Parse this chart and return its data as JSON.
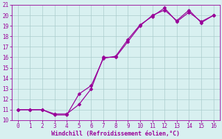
{
  "xlabel": "Windchill (Refroidissement éolien,°C)",
  "line1_x": [
    0,
    1,
    2,
    3,
    4,
    5,
    6,
    7,
    8,
    9,
    10,
    11,
    12,
    13,
    14,
    15,
    16
  ],
  "line1_y": [
    11,
    11,
    11,
    10.5,
    10.5,
    12.5,
    13.3,
    15.9,
    16.1,
    17.7,
    19.1,
    19.9,
    20.7,
    19.4,
    20.3,
    19.4,
    20.0
  ],
  "line2_x": [
    0,
    1,
    2,
    3,
    4,
    5,
    6,
    7,
    8,
    9,
    10,
    11,
    12,
    13,
    14,
    15,
    16
  ],
  "line2_y": [
    11,
    11,
    11,
    10.6,
    10.6,
    11.5,
    13.0,
    16.0,
    16.0,
    17.5,
    19.0,
    20.0,
    20.5,
    19.5,
    20.5,
    19.3,
    20.0
  ],
  "line_color": "#990099",
  "bg_color": "#d8f0f0",
  "grid_color": "#aacccc",
  "axis_label_color": "#990099",
  "tick_color": "#990099",
  "xlim": [
    -0.5,
    16.5
  ],
  "ylim": [
    10,
    21
  ],
  "xticks": [
    0,
    1,
    2,
    3,
    4,
    5,
    6,
    7,
    8,
    9,
    10,
    11,
    12,
    13,
    14,
    15,
    16
  ],
  "yticks": [
    10,
    11,
    12,
    13,
    14,
    15,
    16,
    17,
    18,
    19,
    20,
    21
  ],
  "marker": "D",
  "markersize": 2.5,
  "linewidth": 0.9,
  "tick_fontsize": 5.5,
  "xlabel_fontsize": 6.0
}
